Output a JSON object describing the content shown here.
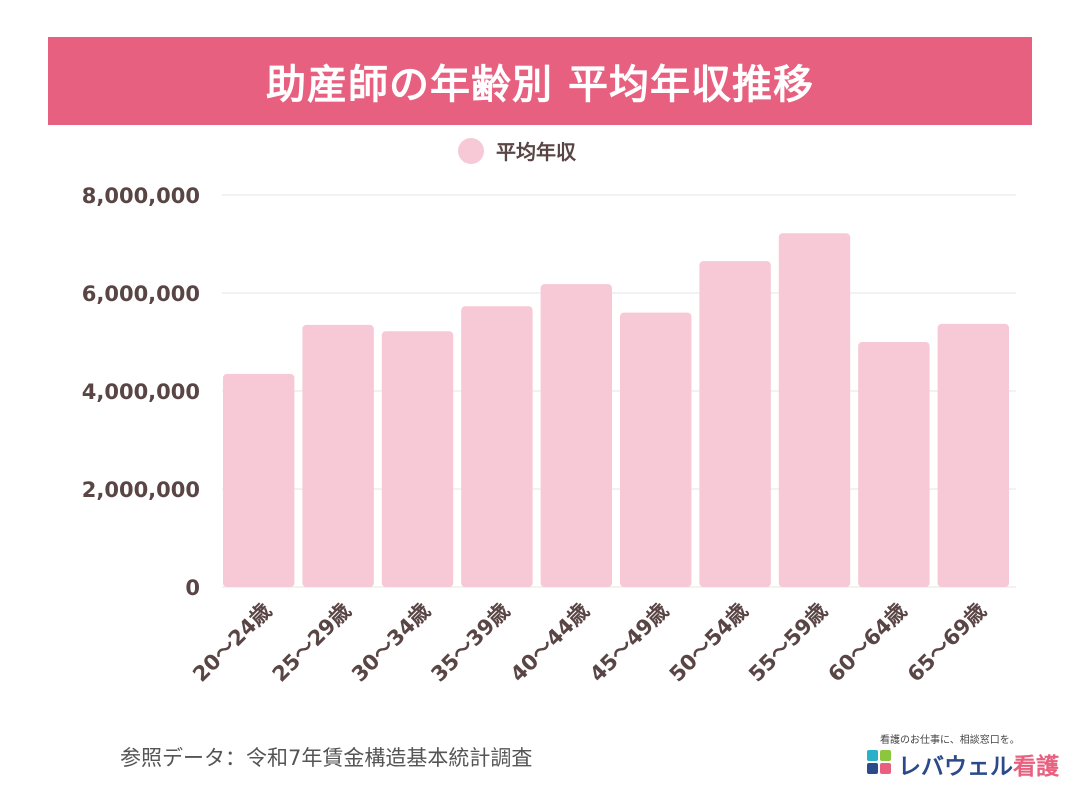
{
  "header": {
    "title": "助産師の年齢別 平均年収推移"
  },
  "source_note": "参照データ：令和7年賃金構造基本統計調査",
  "logo": {
    "tagline": "看護のお仕事に、相談窓口を。",
    "name_part1": "レバウェル",
    "name_part2": "看護"
  },
  "colors": {
    "banner": "#e8607f",
    "bar": "#f7c8d6",
    "axis_text": "#5a4545",
    "grid": "#e6e6e6"
  },
  "chart_data": {
    "type": "bar",
    "title": "",
    "legend": {
      "placement": "top-center",
      "entries": [
        "平均年収"
      ]
    },
    "grid": true,
    "categories": [
      "20～24歳",
      "25～29歳",
      "30～34歳",
      "35～39歳",
      "40～44歳",
      "45～49歳",
      "50～54歳",
      "55～59歳",
      "60～64歳",
      "65～69歳"
    ],
    "series": [
      {
        "name": "平均年収",
        "values": [
          4350000,
          5350000,
          5220000,
          5730000,
          6180000,
          5600000,
          6650000,
          7220000,
          5000000,
          5370000
        ]
      }
    ],
    "ylim": [
      0,
      8000000
    ],
    "yticks": [
      0,
      2000000,
      4000000,
      6000000,
      8000000
    ],
    "ytick_labels": [
      "0",
      "2,000,000",
      "4,000,000",
      "6,000,000",
      "8,000,000"
    ]
  }
}
